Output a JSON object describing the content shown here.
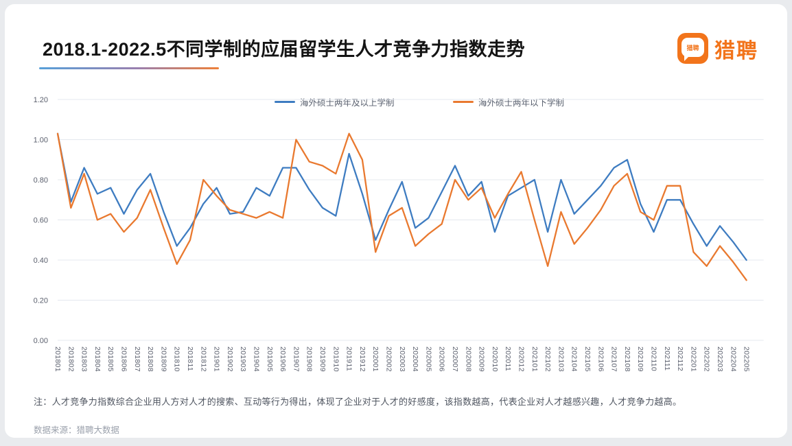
{
  "page": {
    "title": "2018.1-2022.5不同学制的应届留学生人才竞争力指数走势",
    "logo_text": "猎聘",
    "logo_bubble_text": "猎聘",
    "note": "注：人才竞争力指数综合企业用人方对人才的搜索、互动等行为得出，体现了企业对于人才的好感度，该指数越高，代表企业对人才越感兴趣，人才竞争力越高。",
    "source": "数据来源：猎聘大数据"
  },
  "colors": {
    "blue": "#3e7cc1",
    "orange": "#e9792f",
    "grid": "#e4e8ef",
    "axis_text": "#5a5f6d",
    "title_underline_left": "#57a0d9",
    "title_underline_right": "#ee8038",
    "logo_orange": "#f2741b"
  },
  "chart_data": {
    "type": "line",
    "title": "2018.1-2022.5不同学制的应届留学生人才竞争力指数走势",
    "xlabel": "",
    "ylabel": "",
    "ylim": [
      0,
      1.2
    ],
    "y_ticks": [
      "0.00",
      "0.20",
      "0.40",
      "0.60",
      "0.80",
      "1.00",
      "1.20"
    ],
    "grid": true,
    "legend_position": "top",
    "x": [
      "201801",
      "201802",
      "201803",
      "201804",
      "201805",
      "201806",
      "201807",
      "201808",
      "201809",
      "201810",
      "201811",
      "201812",
      "201901",
      "201902",
      "201903",
      "201904",
      "201905",
      "201906",
      "201907",
      "201908",
      "201909",
      "201910",
      "201911",
      "201912",
      "202001",
      "202002",
      "202003",
      "202004",
      "202005",
      "202006",
      "202007",
      "202008",
      "202009",
      "202010",
      "202011",
      "202012",
      "202101",
      "202102",
      "202103",
      "202104",
      "202105",
      "202106",
      "202107",
      "202108",
      "202109",
      "202110",
      "202111",
      "202112",
      "202201",
      "202202",
      "202203",
      "202204",
      "202205"
    ],
    "series": [
      {
        "name": "海外硕士两年及以上学制",
        "color_key": "blue",
        "values": [
          1.03,
          0.69,
          0.86,
          0.73,
          0.76,
          0.63,
          0.75,
          0.83,
          0.64,
          0.47,
          0.56,
          0.68,
          0.76,
          0.63,
          0.64,
          0.76,
          0.72,
          0.86,
          0.86,
          0.75,
          0.66,
          0.62,
          0.93,
          0.73,
          0.5,
          0.65,
          0.79,
          0.56,
          0.61,
          0.74,
          0.87,
          0.72,
          0.79,
          0.54,
          0.72,
          0.76,
          0.8,
          0.54,
          0.8,
          0.63,
          0.7,
          0.77,
          0.86,
          0.9,
          0.68,
          0.54,
          0.7,
          0.7,
          0.58,
          0.47,
          0.57,
          0.49,
          0.4
        ]
      },
      {
        "name": "海外硕士两年以下学制",
        "color_key": "orange",
        "values": [
          1.03,
          0.66,
          0.83,
          0.6,
          0.63,
          0.54,
          0.61,
          0.75,
          0.56,
          0.38,
          0.5,
          0.8,
          0.72,
          0.65,
          0.63,
          0.61,
          0.64,
          0.61,
          1.0,
          0.89,
          0.87,
          0.83,
          1.03,
          0.9,
          0.44,
          0.62,
          0.66,
          0.47,
          0.53,
          0.58,
          0.8,
          0.7,
          0.76,
          0.61,
          0.73,
          0.84,
          0.6,
          0.37,
          0.64,
          0.48,
          0.56,
          0.65,
          0.77,
          0.83,
          0.64,
          0.6,
          0.77,
          0.77,
          0.44,
          0.37,
          0.47,
          0.39,
          0.3
        ]
      }
    ]
  }
}
